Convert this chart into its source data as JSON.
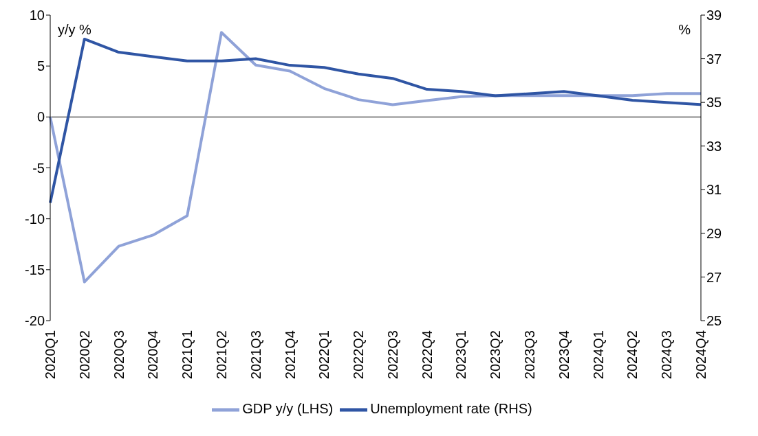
{
  "chart_data": {
    "type": "line",
    "ylabel": "y/y %",
    "y2label": "%",
    "categories": [
      "2020Q1",
      "2020Q2",
      "2020Q3",
      "2020Q4",
      "2021Q1",
      "2021Q2",
      "2021Q3",
      "2021Q4",
      "2022Q1",
      "2022Q2",
      "2022Q3",
      "2022Q4",
      "2023Q1",
      "2023Q2",
      "2023Q3",
      "2023Q4",
      "2024Q1",
      "2024Q2",
      "2024Q3",
      "2024Q4"
    ],
    "series": [
      {
        "name": "GDP y/y (LHS)",
        "color": "#8fa2d8",
        "values": [
          0,
          -16.2,
          -12.7,
          -11.6,
          -9.7,
          8.3,
          5.1,
          4.5,
          2.8,
          1.7,
          1.2,
          1.6,
          2.0,
          2.1,
          2.1,
          2.1,
          2.1,
          2.1,
          2.3,
          2.3
        ]
      },
      {
        "name": "Unemployment rate (RHS)",
        "color": "#2f55a4",
        "axis": "y2",
        "values": [
          30.4,
          37.9,
          37.3,
          37.1,
          36.9,
          36.9,
          37.0,
          36.7,
          36.6,
          36.3,
          36.1,
          35.6,
          35.5,
          35.3,
          35.4,
          35.5,
          35.3,
          35.1,
          35.0,
          34.9
        ]
      }
    ],
    "ylim": [
      -20,
      10
    ],
    "yticks": [
      -20,
      -15,
      -10,
      -5,
      0,
      5,
      10
    ],
    "y2lim": [
      25,
      39
    ],
    "y2ticks": [
      25,
      27,
      29,
      31,
      33,
      35,
      37,
      39
    ],
    "ref_lines": [
      {
        "axis": "y",
        "value": 0,
        "color": "#000000"
      }
    ],
    "legend": "bottom",
    "marker": "none",
    "line_style": "solid"
  }
}
